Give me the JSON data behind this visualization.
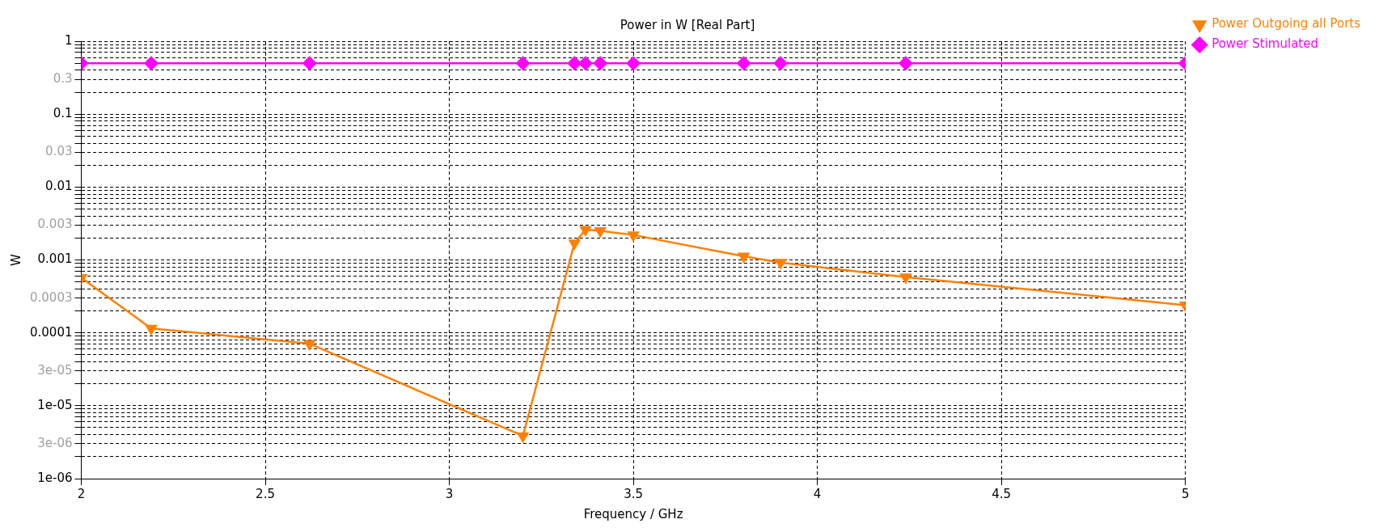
{
  "chart_data": {
    "type": "line",
    "title": "Power in W [Real Part]",
    "xlabel": "Frequency / GHz",
    "ylabel": "W",
    "x": [
      2,
      2.19,
      2.62,
      3.2,
      3.34,
      3.37,
      3.41,
      3.5,
      3.8,
      3.9,
      4.24,
      5
    ],
    "series": [
      {
        "name": "Power Outgoing all Ports",
        "color": "#ff8000",
        "marker": "triangle",
        "values": [
          0.00057,
          0.000115,
          7.1e-05,
          3.85e-06,
          0.0017,
          0.0026,
          0.0025,
          0.0022,
          0.00112,
          0.00092,
          0.00058,
          0.00024
        ]
      },
      {
        "name": "Power Stimulated",
        "color": "#ff00ff",
        "marker": "diamond",
        "values": [
          0.5,
          0.5,
          0.5,
          0.5,
          0.5,
          0.5,
          0.5,
          0.5,
          0.5,
          0.5,
          0.5,
          0.5
        ]
      }
    ],
    "log": "y",
    "xlim": [
      2,
      5
    ],
    "xticks": [
      2,
      2.5,
      3,
      3.5,
      4,
      4.5,
      5
    ],
    "ylim": [
      1e-06,
      1
    ],
    "yticks": [
      {
        "value": 1e-06,
        "label": "1e-06"
      },
      {
        "value": 2e-06,
        "label": null
      },
      {
        "value": 3e-06,
        "label": "3e-06"
      },
      {
        "value": 4e-06,
        "label": null
      },
      {
        "value": 5e-06,
        "label": null
      },
      {
        "value": 6e-06,
        "label": null
      },
      {
        "value": 7e-06,
        "label": null
      },
      {
        "value": 8e-06,
        "label": null
      },
      {
        "value": 9e-06,
        "label": null
      },
      {
        "value": 1e-05,
        "label": "1e-05"
      },
      {
        "value": 2e-05,
        "label": null
      },
      {
        "value": 3e-05,
        "label": "3e-05"
      },
      {
        "value": 4e-05,
        "label": null
      },
      {
        "value": 5e-05,
        "label": null
      },
      {
        "value": 6e-05,
        "label": null
      },
      {
        "value": 7e-05,
        "label": null
      },
      {
        "value": 8e-05,
        "label": null
      },
      {
        "value": 9e-05,
        "label": null
      },
      {
        "value": 0.0001,
        "label": "0.0001"
      },
      {
        "value": 0.0002,
        "label": null
      },
      {
        "value": 0.0003,
        "label": "0.0003"
      },
      {
        "value": 0.0004,
        "label": null
      },
      {
        "value": 0.0005,
        "label": null
      },
      {
        "value": 0.0006,
        "label": null
      },
      {
        "value": 0.0007,
        "label": null
      },
      {
        "value": 0.0008,
        "label": null
      },
      {
        "value": 0.0009,
        "label": null
      },
      {
        "value": 0.001,
        "label": "0.001"
      },
      {
        "value": 0.002,
        "label": null
      },
      {
        "value": 0.003,
        "label": "0.003"
      },
      {
        "value": 0.004,
        "label": null
      },
      {
        "value": 0.005,
        "label": null
      },
      {
        "value": 0.006,
        "label": null
      },
      {
        "value": 0.007,
        "label": null
      },
      {
        "value": 0.008,
        "label": null
      },
      {
        "value": 0.009,
        "label": null
      },
      {
        "value": 0.01,
        "label": "0.01"
      },
      {
        "value": 0.02,
        "label": null
      },
      {
        "value": 0.03,
        "label": "0.03"
      },
      {
        "value": 0.04,
        "label": null
      },
      {
        "value": 0.05,
        "label": null
      },
      {
        "value": 0.06,
        "label": null
      },
      {
        "value": 0.07,
        "label": null
      },
      {
        "value": 0.08,
        "label": null
      },
      {
        "value": 0.09,
        "label": null
      },
      {
        "value": 0.1,
        "label": "0.1"
      },
      {
        "value": 0.2,
        "label": null
      },
      {
        "value": 0.3,
        "label": "0.3"
      },
      {
        "value": 0.4,
        "label": null
      },
      {
        "value": 0.5,
        "label": null
      },
      {
        "value": 0.6,
        "label": null
      },
      {
        "value": 0.7,
        "label": null
      },
      {
        "value": 0.8,
        "label": null
      },
      {
        "value": 0.9,
        "label": null
      },
      {
        "value": 1,
        "label": "1"
      }
    ],
    "grid": true,
    "legend": "right"
  }
}
